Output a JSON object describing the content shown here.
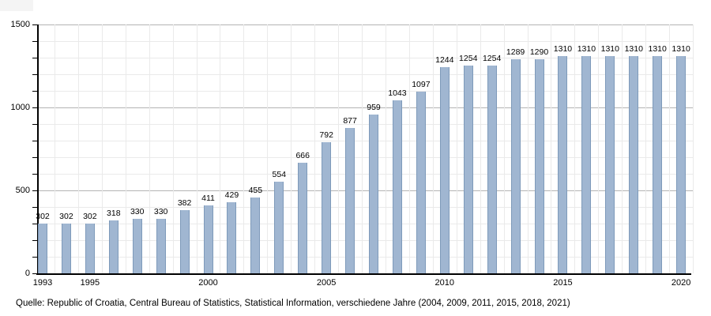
{
  "chart_data": {
    "type": "bar",
    "title": "",
    "xlabel": "",
    "ylabel": "",
    "x": [
      1993,
      1994,
      1995,
      1996,
      1997,
      1998,
      1999,
      2000,
      2001,
      2002,
      2003,
      2004,
      2005,
      2006,
      2007,
      2008,
      2009,
      2010,
      2011,
      2012,
      2013,
      2014,
      2015,
      2016,
      2017,
      2018,
      2019,
      2020
    ],
    "values": [
      302,
      302,
      302,
      318,
      330,
      330,
      382,
      411,
      429,
      455,
      554,
      666,
      792,
      877,
      959,
      1043,
      1097,
      1244,
      1254,
      1254,
      1289,
      1290,
      1310,
      1310,
      1310,
      1310,
      1310,
      1310
    ],
    "ylim": [
      0,
      1500
    ],
    "y_ticks": [
      0,
      500,
      1000,
      1500
    ],
    "y_tick_labels": [
      "0",
      "500",
      "1000",
      "1500"
    ],
    "y_minor_step": 100,
    "y_major_step": 500,
    "x_tick_years": [
      1993,
      1995,
      2000,
      2005,
      2010,
      2015,
      2020
    ],
    "x_tick_labels": [
      "1993",
      "1995",
      "2000",
      "2005",
      "2010",
      "2015",
      "2020"
    ],
    "grid": "horizontal minor every 100, major every 500, faint vertical lines between bars",
    "legend": "none",
    "bar_value_labels_shown": true,
    "colors": {
      "bar_fill": "#a0b6d1",
      "bar_border": "#7e9aba",
      "grid_major": "#b4b4b4",
      "grid_minor": "#eaeaea",
      "axis": "#000000",
      "label_text": "#000000",
      "background": "#ffffff"
    }
  },
  "source": "Quelle: Republic of Croatia, Central Bureau of Statistics, Statistical Information, verschiedene Jahre (2004, 2009, 2011, 2015, 2018, 2021)"
}
